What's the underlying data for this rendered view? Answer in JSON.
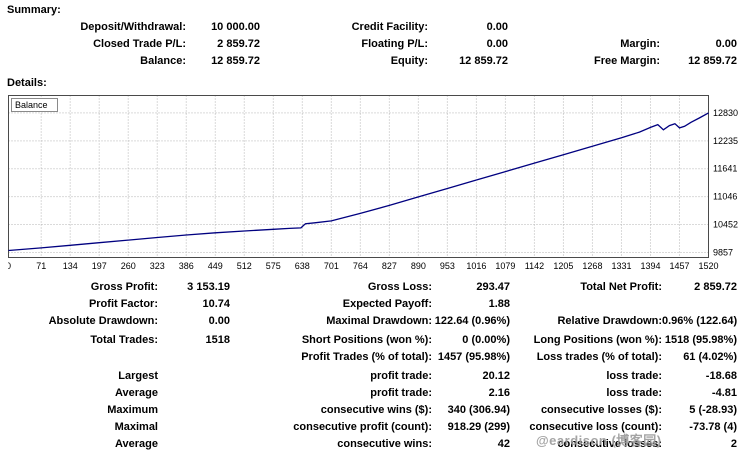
{
  "summary": {
    "title": "Summary:",
    "rows": [
      [
        "Deposit/Withdrawal:",
        "10 000.00",
        "Credit Facility:",
        "0.00",
        "",
        ""
      ],
      [
        "Closed Trade P/L:",
        "2 859.72",
        "Floating P/L:",
        "0.00",
        "Margin:",
        "0.00"
      ],
      [
        "Balance:",
        "12 859.72",
        "Equity:",
        "12 859.72",
        "Free Margin:",
        "12 859.72"
      ]
    ]
  },
  "details": {
    "title": "Details:",
    "rows": [
      {
        "gap": false,
        "c": [
          "Gross Profit:",
          "3 153.19",
          "Gross Loss:",
          "293.47",
          "Total Net Profit:",
          "2 859.72"
        ]
      },
      {
        "gap": false,
        "c": [
          "Profit Factor:",
          "10.74",
          "Expected Payoff:",
          "1.88",
          "",
          ""
        ]
      },
      {
        "gap": false,
        "c": [
          "Absolute Drawdown:",
          "0.00",
          "Maximal Drawdown:",
          "122.64 (0.96%)",
          "Relative Drawdown:",
          "0.96% (122.64)"
        ]
      },
      {
        "gap": true,
        "c": [
          "Total Trades:",
          "1518",
          "Short Positions (won %):",
          "0 (0.00%)",
          "Long Positions (won %):",
          "1518 (95.98%)"
        ]
      },
      {
        "gap": false,
        "c": [
          "",
          "",
          "Profit Trades (% of total):",
          "1457 (95.98%)",
          "Loss trades (% of total):",
          "61 (4.02%)"
        ]
      },
      {
        "gap": true,
        "c": [
          "Largest",
          "",
          "profit trade:",
          "20.12",
          "loss trade:",
          "-18.68"
        ]
      },
      {
        "gap": false,
        "c": [
          "Average",
          "",
          "profit trade:",
          "2.16",
          "loss trade:",
          "-4.81"
        ]
      },
      {
        "gap": false,
        "c": [
          "Maximum",
          "",
          "consecutive wins ($):",
          "340 (306.94)",
          "consecutive losses ($):",
          "5 (-28.93)"
        ]
      },
      {
        "gap": false,
        "c": [
          "Maximal",
          "",
          "consecutive profit (count):",
          "918.29 (299)",
          "consecutive loss (count):",
          "-73.78 (4)"
        ]
      },
      {
        "gap": false,
        "c": [
          "Average",
          "",
          "consecutive wins:",
          "42",
          "consecutive losses:",
          "2"
        ]
      }
    ]
  },
  "chart_data": {
    "type": "line",
    "title": "Balance",
    "grid": true,
    "legend_position": "top-left",
    "x_range": [
      0,
      1520
    ],
    "plot_value_range": [
      9750,
      13200
    ],
    "x_ticks": [
      0,
      71,
      134,
      197,
      260,
      323,
      386,
      449,
      512,
      575,
      638,
      701,
      764,
      827,
      890,
      953,
      1016,
      1079,
      1142,
      1205,
      1268,
      1331,
      1394,
      1457,
      1520
    ],
    "y_ticks": [
      9857,
      10452,
      11046,
      11641,
      12235,
      12830
    ],
    "series": [
      {
        "name": "Balance",
        "color": "#000080",
        "points": [
          [
            0,
            9900
          ],
          [
            71,
            9955
          ],
          [
            134,
            10010
          ],
          [
            197,
            10065
          ],
          [
            260,
            10120
          ],
          [
            323,
            10175
          ],
          [
            386,
            10230
          ],
          [
            449,
            10275
          ],
          [
            512,
            10315
          ],
          [
            575,
            10350
          ],
          [
            610,
            10370
          ],
          [
            635,
            10380
          ],
          [
            645,
            10470
          ],
          [
            665,
            10490
          ],
          [
            701,
            10530
          ],
          [
            764,
            10690
          ],
          [
            827,
            10860
          ],
          [
            890,
            11040
          ],
          [
            953,
            11220
          ],
          [
            1016,
            11400
          ],
          [
            1079,
            11580
          ],
          [
            1142,
            11760
          ],
          [
            1205,
            11940
          ],
          [
            1268,
            12120
          ],
          [
            1331,
            12300
          ],
          [
            1370,
            12420
          ],
          [
            1394,
            12520
          ],
          [
            1410,
            12580
          ],
          [
            1422,
            12470
          ],
          [
            1435,
            12560
          ],
          [
            1447,
            12600
          ],
          [
            1457,
            12510
          ],
          [
            1468,
            12545
          ],
          [
            1482,
            12630
          ],
          [
            1500,
            12720
          ],
          [
            1520,
            12830
          ]
        ]
      }
    ]
  },
  "watermark": {
    "text": "@eardison (博客园)"
  }
}
